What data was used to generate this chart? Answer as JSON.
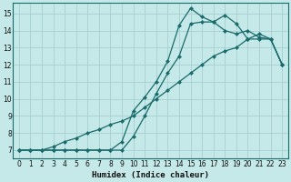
{
  "xlabel": "Humidex (Indice chaleur)",
  "xlim": [
    -0.5,
    23.5
  ],
  "ylim": [
    6.5,
    15.6
  ],
  "xticks": [
    0,
    1,
    2,
    3,
    4,
    5,
    6,
    7,
    8,
    9,
    10,
    11,
    12,
    13,
    14,
    15,
    16,
    17,
    18,
    19,
    20,
    21,
    22,
    23
  ],
  "yticks": [
    7,
    8,
    9,
    10,
    11,
    12,
    13,
    14,
    15
  ],
  "background_color": "#c5e8e8",
  "grid_color": "#a8d0d0",
  "line_color": "#1a6b6b",
  "line1_x": [
    0,
    1,
    2,
    3,
    4,
    5,
    6,
    7,
    8,
    9,
    10,
    11,
    12,
    13,
    14,
    15,
    16,
    17,
    18,
    19,
    20,
    21,
    22,
    23
  ],
  "line1_y": [
    7.0,
    7.0,
    7.0,
    7.2,
    7.5,
    7.7,
    8.0,
    8.2,
    8.5,
    8.7,
    9.0,
    9.5,
    10.0,
    10.5,
    11.0,
    11.5,
    12.0,
    12.5,
    12.8,
    13.0,
    13.5,
    13.8,
    13.5,
    12.0
  ],
  "line2_x": [
    0,
    1,
    2,
    3,
    4,
    5,
    6,
    7,
    8,
    9,
    10,
    11,
    12,
    13,
    14,
    15,
    16,
    17,
    18,
    19,
    20,
    21,
    22,
    23
  ],
  "line2_y": [
    7.0,
    7.0,
    7.0,
    7.0,
    7.0,
    7.0,
    7.0,
    7.0,
    7.0,
    7.0,
    7.8,
    9.0,
    10.3,
    11.5,
    12.5,
    14.4,
    14.5,
    14.5,
    14.0,
    13.8,
    14.0,
    13.6,
    13.5,
    12.0
  ],
  "line3_x": [
    0,
    1,
    2,
    3,
    4,
    5,
    6,
    7,
    8,
    9,
    10,
    11,
    12,
    13,
    14,
    15,
    16,
    17,
    18,
    19,
    20,
    21,
    22,
    23
  ],
  "line3_y": [
    7.0,
    7.0,
    7.0,
    7.0,
    7.0,
    7.0,
    7.0,
    7.0,
    7.0,
    7.5,
    9.3,
    10.1,
    11.0,
    12.2,
    14.3,
    15.3,
    14.8,
    14.5,
    14.9,
    14.4,
    13.5,
    13.5,
    13.5,
    12.0
  ]
}
